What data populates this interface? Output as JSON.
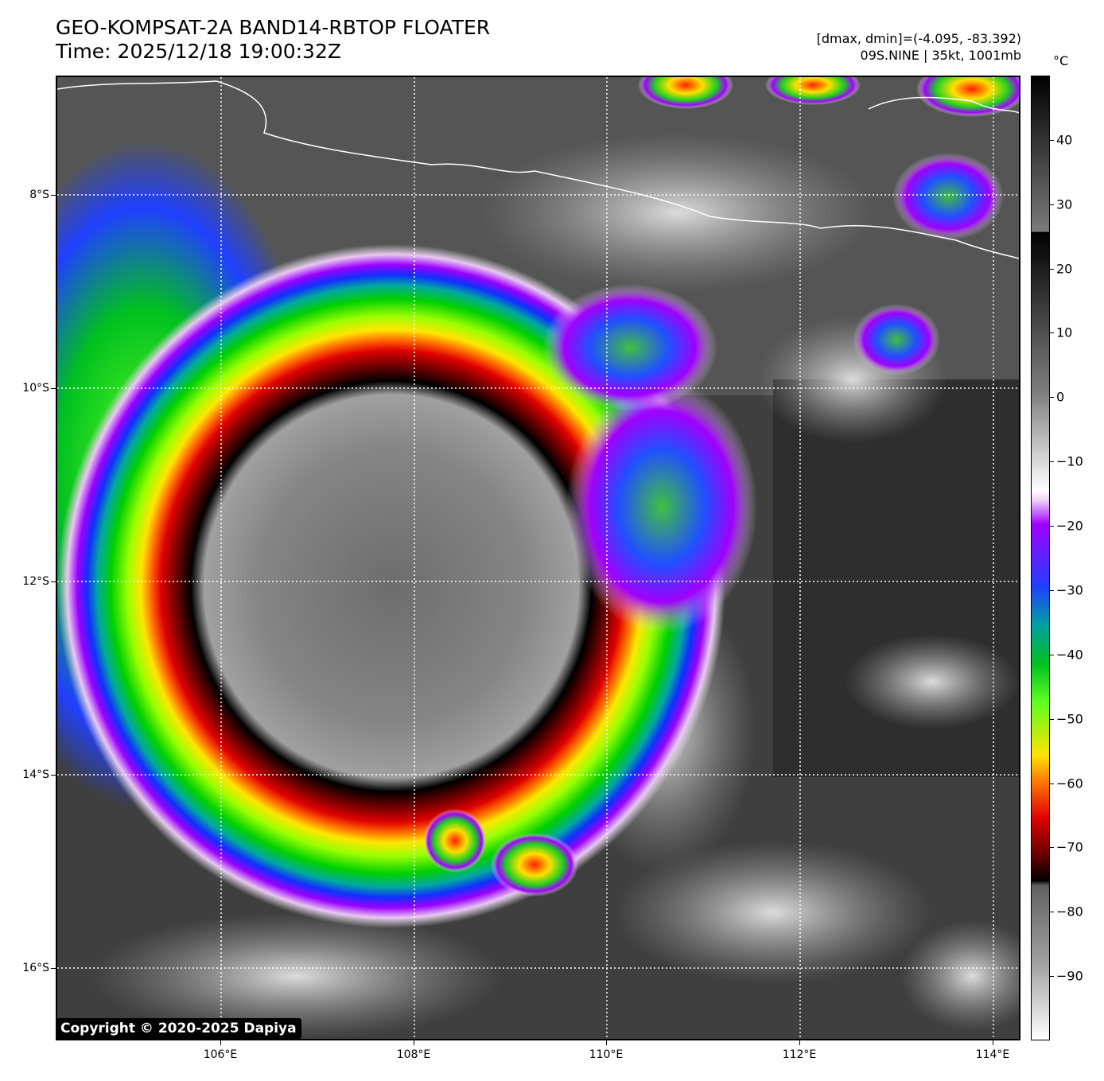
{
  "header": {
    "title_line1": "GEO-KOMPSAT-2A BAND14-RBTOP FLOATER",
    "title_line2": "Time: 2025/12/18 19:00:32Z",
    "info_line1": "[dmax, dmin]=(-4.095, -83.392)",
    "info_line2": "09S.NINE | 35kt, 1001mb"
  },
  "map": {
    "lat_labels": [
      "8°S",
      "10°S",
      "12°S",
      "14°S",
      "16°S"
    ],
    "lon_labels": [
      "106°E",
      "108°E",
      "110°E",
      "112°E",
      "114°E"
    ],
    "copyright": "Copyright © 2020-2025 Dapiya"
  },
  "colorbar": {
    "unit": "°C",
    "labels": [
      "40",
      "30",
      "20",
      "10",
      "0",
      "−10",
      "−20",
      "−30",
      "−40",
      "−50",
      "−60",
      "−70",
      "−80",
      "−90"
    ],
    "values": [
      40,
      30,
      20,
      10,
      0,
      -10,
      -20,
      -30,
      -40,
      -50,
      -60,
      -70,
      -80,
      -90
    ],
    "range": [
      -100,
      50
    ]
  }
}
